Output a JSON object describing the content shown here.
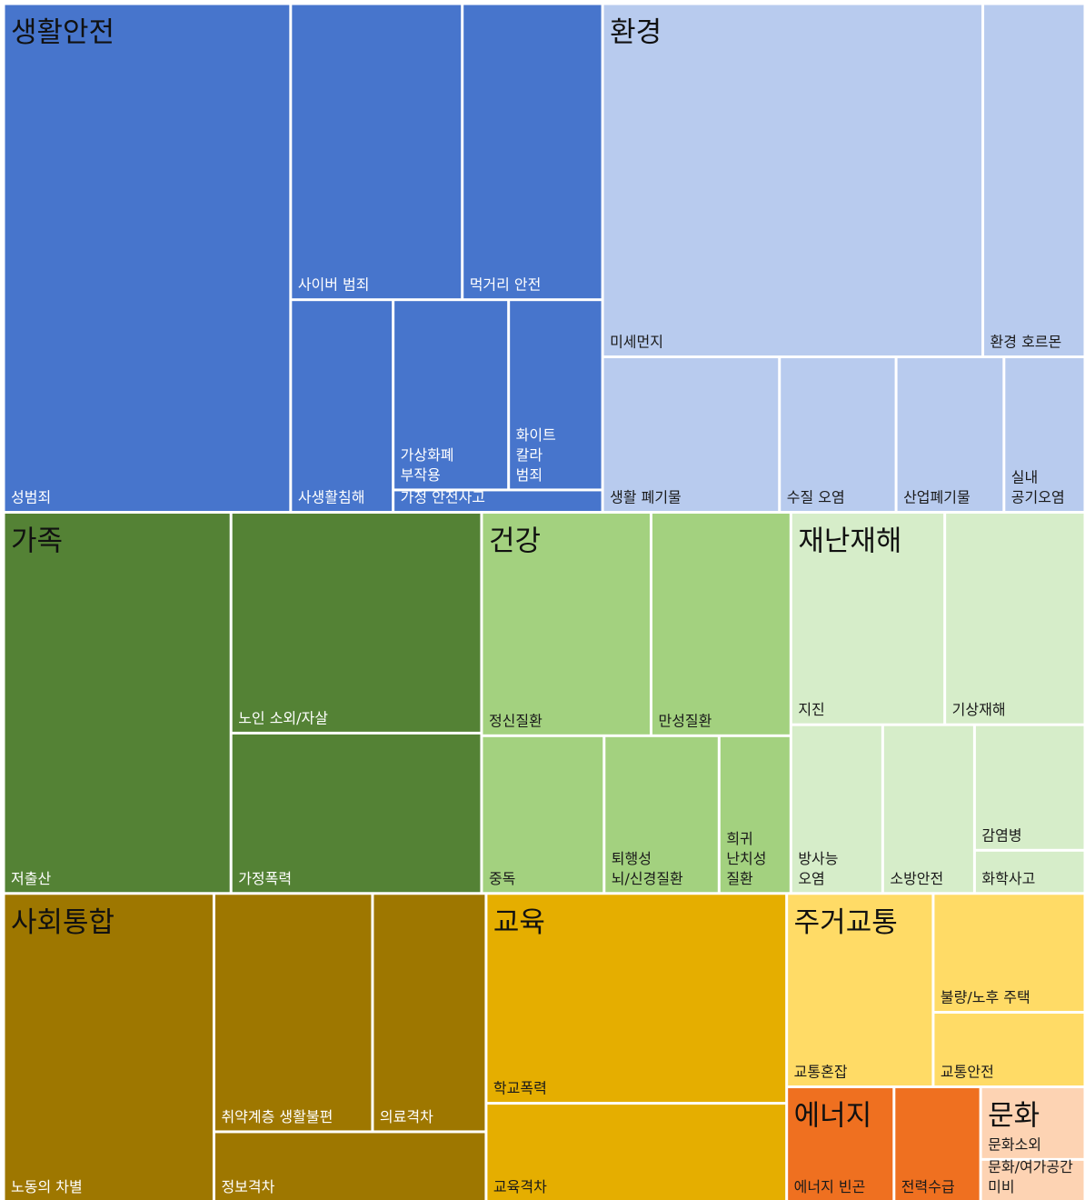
{
  "chart_data": {
    "type": "treemap",
    "groups": [
      {
        "name": "생활안전",
        "color": "#4775cc",
        "children": [
          {
            "name": "성범죄",
            "value": 171.5
          },
          {
            "name": "사이버 범죄",
            "value": 59.7
          },
          {
            "name": "먹거리 안전",
            "value": 48.8
          },
          {
            "name": "사생활침해",
            "value": 25.6
          },
          {
            "name": "가상화폐 부작용",
            "value": 25.8
          },
          {
            "name": "화이트 칼라 범죄",
            "value": 21.0
          },
          {
            "name": "가정 안전사고",
            "value": 5.5
          }
        ]
      },
      {
        "name": "환경",
        "color": "#b8cbee",
        "children": [
          {
            "name": "미세먼지",
            "value": 157.8
          },
          {
            "name": "환경 호르몬",
            "value": 42.4
          },
          {
            "name": "생활 폐기물",
            "value": 32.3
          },
          {
            "name": "수질 오염",
            "value": 21.3
          },
          {
            "name": "산업폐기물",
            "value": 19.7
          },
          {
            "name": "실내 공기오염",
            "value": 14.8
          }
        ]
      },
      {
        "name": "가족",
        "color": "#548235",
        "children": [
          {
            "name": "저출산",
            "value": 101.8
          },
          {
            "name": "노인 소외/자살",
            "value": 65.0
          },
          {
            "name": "가정폭력",
            "value": 47.2
          }
        ]
      },
      {
        "name": "건강",
        "color": "#a3d17f",
        "children": [
          {
            "name": "정신질환",
            "value": 44.5
          },
          {
            "name": "만성질환",
            "value": 36.7
          },
          {
            "name": "중독",
            "value": 22.7
          },
          {
            "name": "퇴행성 뇌/신경질환",
            "value": 21.3
          },
          {
            "name": "희귀 난치성 질환",
            "value": 13.3
          }
        ]
      },
      {
        "name": "재난재해",
        "color": "#d6edc9",
        "children": [
          {
            "name": "지진",
            "value": 38.4
          },
          {
            "name": "기상재해",
            "value": 35.0
          },
          {
            "name": "방사능 오염",
            "value": 18.2
          },
          {
            "name": "소방안전",
            "value": 18.2
          },
          {
            "name": "감염병",
            "value": 16.3
          },
          {
            "name": "화학사고",
            "value": 5.6
          }
        ]
      },
      {
        "name": "사회통합",
        "color": "#9e7700",
        "children": [
          {
            "name": "노동의 차별",
            "value": 76.2
          },
          {
            "name": "취약계층 생활불편",
            "value": 44.4
          },
          {
            "name": "의료격차",
            "value": 31.8
          },
          {
            "name": "정보격차",
            "value": 22.4
          }
        ]
      },
      {
        "name": "교육",
        "color": "#e5ae00",
        "children": [
          {
            "name": "학교폭력",
            "value": 74.1
          },
          {
            "name": "교육격차",
            "value": 34.8
          }
        ]
      },
      {
        "name": "주거교통",
        "color": "#ffdb66",
        "children": [
          {
            "name": "교통혼잡",
            "value": 33.3
          },
          {
            "name": "불량/노후 주택",
            "value": 21.2
          },
          {
            "name": "교통안전",
            "value": 13.3
          }
        ]
      },
      {
        "name": "에너지",
        "color": "#ef7020",
        "children": [
          {
            "name": "에너지 빈곤",
            "value": 14.5
          },
          {
            "name": "전력수급",
            "value": 11.7
          }
        ]
      },
      {
        "name": "문화",
        "color": "#fdd3b3",
        "children": [
          {
            "name": "문화소외",
            "value": 8.9
          },
          {
            "name": "문화/여가공간 미비",
            "value": 5.2
          }
        ]
      }
    ]
  }
}
